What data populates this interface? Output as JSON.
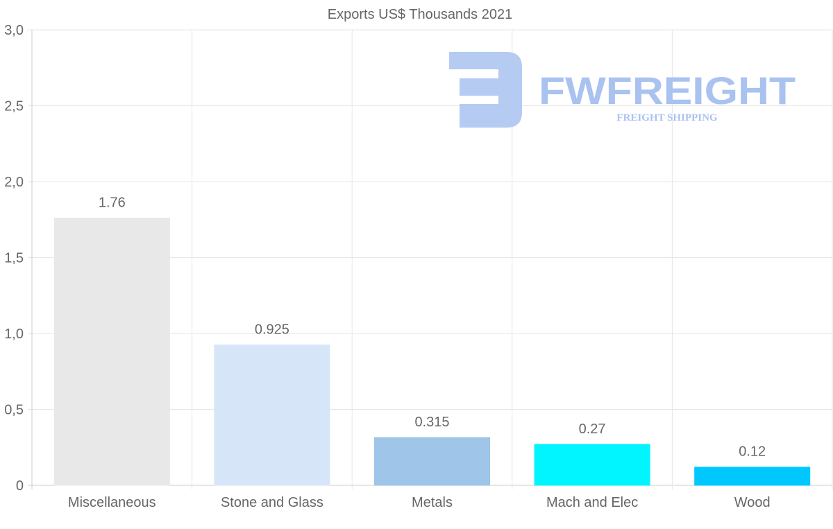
{
  "chart_data": {
    "type": "bar",
    "title": "Exports US$ Thousands 2021",
    "categories": [
      "Miscellaneous",
      "Stone and Glass",
      "Metals",
      "Mach and Elec",
      "Wood"
    ],
    "values": [
      1.76,
      0.925,
      0.315,
      0.27,
      0.12
    ],
    "value_labels": [
      "1.76",
      "0.925",
      "0.315",
      "0.27",
      "0.12"
    ],
    "colors": [
      "#e8e8e8",
      "#d6e6f8",
      "#9fc5e8",
      "#00f5ff",
      "#00c8ff"
    ],
    "ylim": [
      0,
      3.0
    ],
    "yticks": [
      0,
      0.5,
      1.0,
      1.5,
      2.0,
      2.5,
      3.0
    ],
    "ytick_labels": [
      "0",
      "0,5",
      "1,0",
      "1,5",
      "2,0",
      "2,5",
      "3,0"
    ],
    "xlabel": "",
    "ylabel": "",
    "grid": true
  },
  "watermark": {
    "brand": "FWFREIGHT",
    "tagline": "FREIGHT SHIPPING",
    "color": "#a9c2f0"
  }
}
